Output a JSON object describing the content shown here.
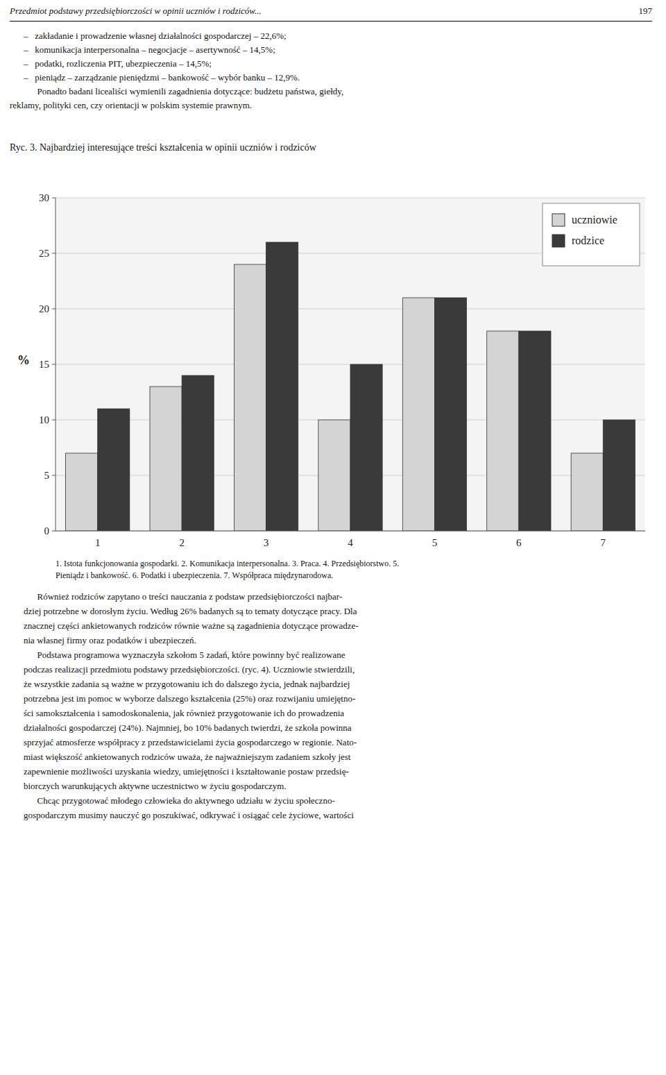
{
  "chart_data": {
    "type": "bar",
    "title": "Ryc. 3. Najbardziej interesujące treści kształcenia w opinii uczniów i rodziców",
    "categories": [
      "1",
      "2",
      "3",
      "4",
      "5",
      "6",
      "7"
    ],
    "series": [
      {
        "name": "uczniowie",
        "color": "#d4d4d4",
        "values": [
          7,
          13,
          24,
          10,
          21,
          18,
          7
        ]
      },
      {
        "name": "rodzice",
        "color": "#3a3a3a",
        "values": [
          11,
          14,
          26,
          15,
          21,
          18,
          10
        ]
      }
    ],
    "ylabel": "%",
    "ylim": [
      0,
      30
    ],
    "yticks": [
      0,
      5,
      10,
      15,
      20,
      25,
      30
    ],
    "grid": true,
    "legend": "upper right"
  },
  "page": {
    "header": "Przedmiot podstawy przedsiębiorczości w opinii uczniów i rodziców...",
    "page_number": "197",
    "bullets": [
      "–   zakładanie i prowadzenie własnej działalności gospodarczej – 22,6%;",
      "–   komunikacja interpersonalna – negocjacje – asertywność – 14,5%;",
      "–   podatki, rozliczenia PIT, ubezpieczenia – 14,5%;",
      "–   pieniądz – zarządzanie pieniędzmi – bankowość – wybór banku – 12,9%."
    ],
    "paragraph_lines": [
      "      Ponadto badani licealiści wymienili zagadnienia dotyczące: budżetu państwa, giełdy,",
      "reklamy, polityki cen, czy orientacji w polskim systemie prawnym."
    ],
    "notes": [
      "1. Istota funkcjonowania gospodarki. 2. Komunikacja interpersonalna. 3. Praca. 4. Przedsiębiorstwo. 5.",
      "Pieniądz i bankowość. 6. Podatki i ubezpieczenia. 7. Współpraca międzynarodowa."
    ],
    "body_lines": [
      "      Również rodziców zapytano o treści nauczania z podstaw przedsiębiorczości najbar-",
      "dziej potrzebne w dorosłym życiu. Według 26% badanych są to tematy dotyczące pracy. Dla",
      "znacznej części ankietowanych rodziców równie ważne są zagadnienia dotyczące prowadze-",
      "nia własnej firmy oraz podatków i ubezpieczeń.",
      "      Podstawa programowa wyznaczyła szkołom 5 zadań, które powinny być realizowane",
      "podczas realizacji przedmiotu podstawy przedsiębiorczości. (ryc. 4). Uczniowie stwierdzili,",
      "że wszystkie zadania są ważne w przygotowaniu ich do dalszego życia, jednak najbardziej",
      "potrzebna jest im pomoc w wyborze dalszego kształcenia (25%) oraz rozwijaniu umiejętno-",
      "ści samokształcenia i samodoskonalenia, jak również przygotowanie ich do prowadzenia",
      "działalności gospodarczej (24%). Najmniej, bo 10% badanych twierdzi, że szkoła powinna",
      "sprzyjać atmosferze współpracy z przedstawicielami życia gospodarczego w regionie. Nato-",
      "miast większość ankietowanych rodziców uważa, że najważniejszym zadaniem szkoły jest",
      "zapewnienie możliwości uzyskania wiedzy, umiejętności i kształtowanie postaw przedsię-",
      "biorczych warunkujących aktywne uczestnictwo w życiu gospodarczym.",
      "      Chcąc przygotować młodego człowieka do aktywnego udziału w życiu społeczno-",
      "gospodarczym musimy nauczyć go poszukiwać, odkrywać i osiągać cele życiowe, wartości"
    ]
  }
}
